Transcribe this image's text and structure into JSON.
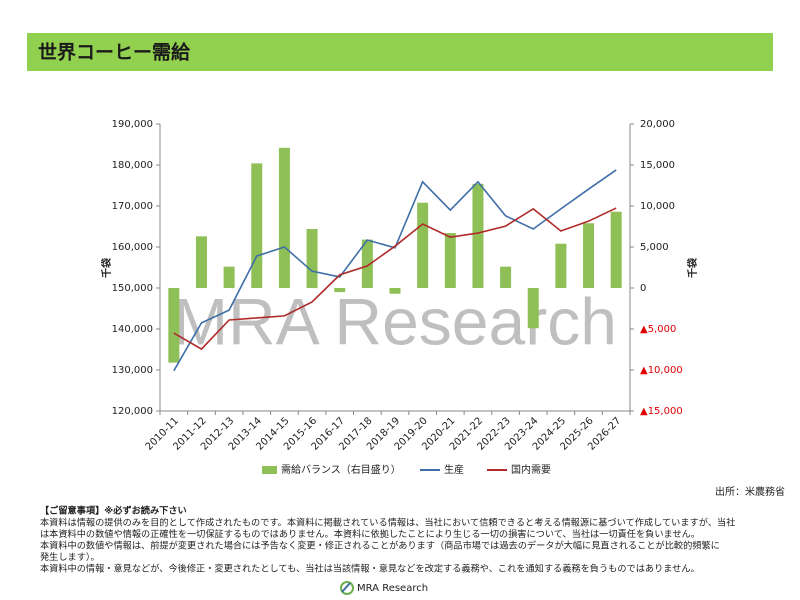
{
  "header": {
    "title": "世界コーヒー需給"
  },
  "chart_data": {
    "type": "combo",
    "categories": [
      "2010-11",
      "2011-12",
      "2012-13",
      "2013-14",
      "2014-15",
      "2015-16",
      "2016-17",
      "2017-18",
      "2018-19",
      "2019-20",
      "2020-21",
      "2021-22",
      "2022-23",
      "2023-24",
      "2024-25",
      "2025-26",
      "2026-27"
    ],
    "series": [
      {
        "name": "需給バランス（右目盛り）",
        "type": "bar",
        "axis": "y2",
        "color": "#8fc057",
        "values": [
          -9100,
          6300,
          2600,
          15200,
          17100,
          7200,
          -500,
          5900,
          -700,
          10400,
          6700,
          12700,
          2600,
          -4900,
          5400,
          7900,
          9300
        ]
      },
      {
        "name": "生産",
        "type": "line",
        "color": "#3e6fa6",
        "values": [
          129800,
          141500,
          144600,
          157800,
          160000,
          154100,
          152700,
          161700,
          159800,
          175900,
          169000,
          175900,
          167600,
          164400,
          169300,
          174100,
          178800
        ]
      },
      {
        "name": "国内需要",
        "type": "line",
        "color": "#b02a2a",
        "values": [
          139000,
          135100,
          142200,
          142700,
          143200,
          146600,
          153200,
          155400,
          160200,
          165600,
          162400,
          163400,
          165100,
          169300,
          163900,
          166300,
          169500
        ]
      }
    ],
    "ylim": [
      120000,
      190000
    ],
    "yticks": [
      {
        "value": 120000,
        "label": "120,000"
      },
      {
        "value": 130000,
        "label": "130,000"
      },
      {
        "value": 140000,
        "label": "140,000"
      },
      {
        "value": 150000,
        "label": "150,000"
      },
      {
        "value": 160000,
        "label": "160,000"
      },
      {
        "value": 170000,
        "label": "170,000"
      },
      {
        "value": 180000,
        "label": "180,000"
      },
      {
        "value": 190000,
        "label": "190,000"
      }
    ],
    "y2lim": [
      -15000,
      20000
    ],
    "y2ticks": [
      {
        "value": -15000,
        "label": "▲15,000"
      },
      {
        "value": -10000,
        "label": "▲10,000"
      },
      {
        "value": -5000,
        "label": "▲5,000"
      },
      0,
      {
        "value": 5000,
        "label": "5,000"
      },
      {
        "value": 10000,
        "label": "10,000"
      },
      {
        "value": 15000,
        "label": "15,000"
      },
      {
        "value": 20000,
        "label": "20,000"
      }
    ],
    "y_label": "千袋",
    "y2_label": "千袋",
    "watermark": "MRA Research",
    "source": "出所：米農務省"
  },
  "notes": {
    "heading": "【ご留意事項】※必ずお読み下さい",
    "lines": [
      "本資料は情報の提供のみを目的として作成されたものです。本資料に掲載されている情報は、当社において信頼できると考える情報源に基づいて作成していますが、当社",
      "は本資料中の数値や情報の正確性を一切保証するものではありません。本資料に依拠したことにより生じる一切の損害について、当社は一切責任を負いません。",
      "本資料中の数値や情報は、前提が変更された場合には予告なく変更・修正されることがあります（商品市場では過去のデータが大幅に見直されることが比較的頻繁に",
      "発生します）。",
      "本資料中の情報・意見などが、今後修正・変更されたとしても、当社は当該情報・意見などを改定する義務や、これを通知する義務を負うものではありません。"
    ]
  },
  "footer": {
    "logo": "MRA Research"
  }
}
